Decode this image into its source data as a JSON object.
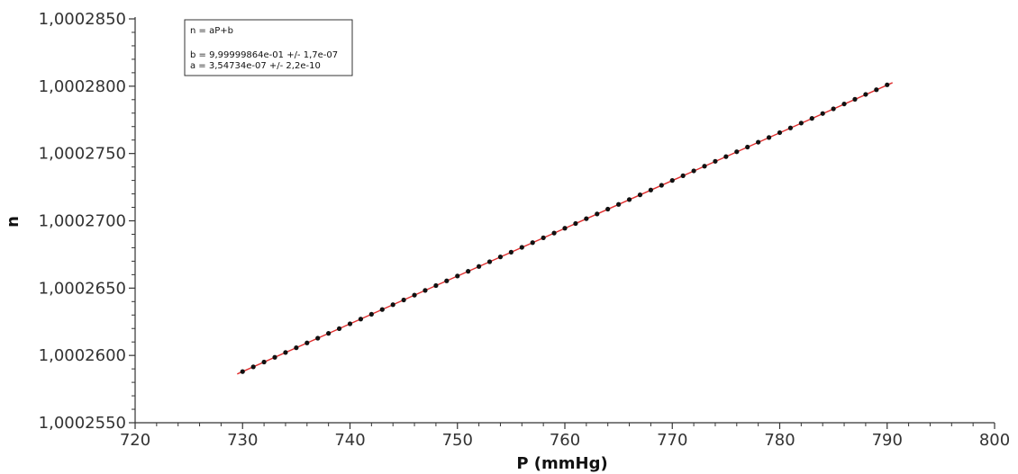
{
  "chart_data": {
    "type": "scatter",
    "xlabel": "P (mmHg)",
    "ylabel": "n",
    "xlim": [
      720,
      800
    ],
    "ylim": [
      1.000255,
      1.000285
    ],
    "xticks": [
      720,
      730,
      740,
      750,
      760,
      770,
      780,
      790,
      800
    ],
    "xtick_labels": [
      "720",
      "730",
      "740",
      "750",
      "760",
      "770",
      "780",
      "790",
      "800"
    ],
    "yticks": [
      1.000255,
      1.00026,
      1.000265,
      1.00027,
      1.000275,
      1.00028,
      1.000285
    ],
    "ytick_labels": [
      "1,0002550",
      "1,0002600",
      "1,0002650",
      "1,0002700",
      "1,0002750",
      "1,0002800",
      "1,0002850"
    ],
    "grid": false,
    "series": [
      {
        "kind": "points",
        "color": "#111111",
        "x": [
          730,
          731,
          732,
          733,
          734,
          735,
          736,
          737,
          738,
          739,
          740,
          741,
          742,
          743,
          744,
          745,
          746,
          747,
          748,
          749,
          750,
          751,
          752,
          753,
          754,
          755,
          756,
          757,
          758,
          759,
          760,
          761,
          762,
          763,
          764,
          765,
          766,
          767,
          768,
          769,
          770,
          771,
          772,
          773,
          774,
          775,
          776,
          777,
          778,
          779,
          780,
          781,
          782,
          783,
          784,
          785,
          786,
          787,
          788,
          789,
          790
        ],
        "y": [
          1.0002588,
          1.00025915,
          1.00025951,
          1.00025986,
          1.00026022,
          1.00026057,
          1.00026093,
          1.00026128,
          1.00026164,
          1.00026199,
          1.00026235,
          1.0002627,
          1.00026306,
          1.00026341,
          1.00026377,
          1.00026412,
          1.00026448,
          1.00026483,
          1.00026519,
          1.00026554,
          1.0002659,
          1.00026625,
          1.00026661,
          1.00026696,
          1.00026732,
          1.00026767,
          1.00026803,
          1.00026838,
          1.00026874,
          1.00026909,
          1.00026945,
          1.0002698,
          1.00027016,
          1.00027051,
          1.00027087,
          1.00027122,
          1.00027158,
          1.00027193,
          1.00027229,
          1.00027264,
          1.000273,
          1.00027335,
          1.00027371,
          1.00027406,
          1.00027442,
          1.00027477,
          1.00027513,
          1.00027548,
          1.00027584,
          1.00027619,
          1.00027655,
          1.0002769,
          1.00027726,
          1.00027761,
          1.00027797,
          1.00027832,
          1.00027868,
          1.00027903,
          1.00027939,
          1.00027974,
          1.0002801
        ]
      },
      {
        "kind": "fit-line",
        "color": "#e03030",
        "x": [
          729.5,
          790.5
        ],
        "y": [
          1.00025862,
          1.00028026
        ]
      }
    ],
    "legend": {
      "position": "top-left",
      "lines": [
        "n = aP+b",
        "",
        "b = 9,99999864e-01 +/- 1,7e-07",
        "a = 3,54734e-07 +/- 2,2e-10"
      ]
    }
  }
}
